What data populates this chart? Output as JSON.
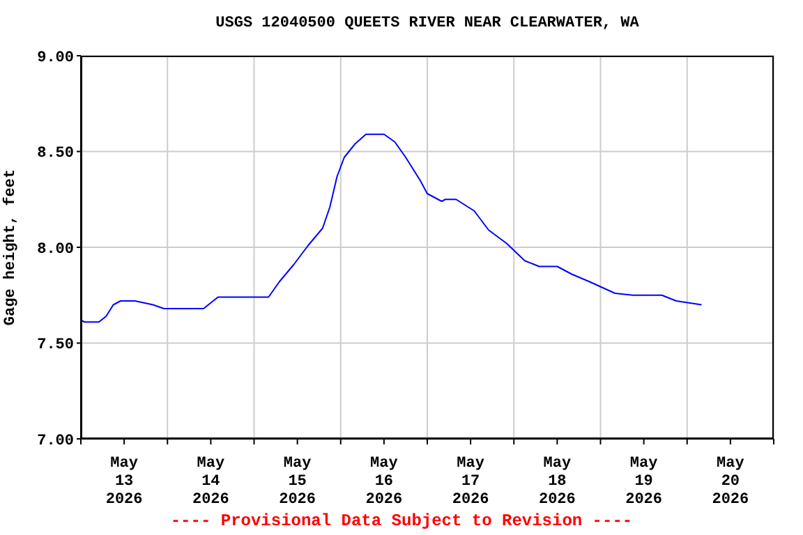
{
  "chart_data": {
    "type": "line",
    "title": "USGS 12040500 QUEETS RIVER NEAR CLEARWATER, WA",
    "ylabel": "Gage height, feet",
    "annotations": [
      "---- Provisional Data Subject to Revision ----"
    ],
    "x": [
      "2026-05-13T00:00",
      "2026-05-13T01:00",
      "2026-05-13T05:00",
      "2026-05-13T07:00",
      "2026-05-13T09:00",
      "2026-05-13T11:00",
      "2026-05-13T15:00",
      "2026-05-13T20:00",
      "2026-05-13T23:00",
      "2026-05-14T10:00",
      "2026-05-14T14:00",
      "2026-05-14T17:00",
      "2026-05-15T01:00",
      "2026-05-15T04:00",
      "2026-05-15T07:00",
      "2026-05-15T11:00",
      "2026-05-15T15:00",
      "2026-05-15T19:00",
      "2026-05-15T21:00",
      "2026-05-15T23:00",
      "2026-05-16T01:00",
      "2026-05-16T04:00",
      "2026-05-16T07:00",
      "2026-05-16T12:00",
      "2026-05-16T15:00",
      "2026-05-16T18:00",
      "2026-05-16T22:00",
      "2026-05-17T00:00",
      "2026-05-17T04:00",
      "2026-05-17T05:00",
      "2026-05-17T08:00",
      "2026-05-17T13:00",
      "2026-05-17T17:00",
      "2026-05-17T22:00",
      "2026-05-18T03:00",
      "2026-05-18T07:00",
      "2026-05-18T12:00",
      "2026-05-18T16:00",
      "2026-05-18T21:00",
      "2026-05-19T04:00",
      "2026-05-19T09:00",
      "2026-05-19T17:00",
      "2026-05-19T21:00",
      "2026-05-20T04:00"
    ],
    "series": [
      {
        "color": "#0000ff",
        "values": [
          7.62,
          7.61,
          7.61,
          7.64,
          7.7,
          7.72,
          7.72,
          7.7,
          7.68,
          7.68,
          7.74,
          7.74,
          7.74,
          7.74,
          7.82,
          7.91,
          8.01,
          8.1,
          8.21,
          8.37,
          8.47,
          8.54,
          8.59,
          8.59,
          8.55,
          8.47,
          8.35,
          8.28,
          8.24,
          8.25,
          8.25,
          8.19,
          8.09,
          8.02,
          7.93,
          7.9,
          7.9,
          7.86,
          7.82,
          7.76,
          7.75,
          7.75,
          7.72,
          7.7
        ]
      }
    ],
    "xlim": [
      "2026-05-13T00:00",
      "2026-05-21T00:00"
    ],
    "xticks": [
      {
        "value": "2026-05-13T00:00",
        "label": null
      },
      {
        "value": "2026-05-13T12:00",
        "label": "May 13 2026"
      },
      {
        "value": "2026-05-14T00:00",
        "label": null
      },
      {
        "value": "2026-05-14T12:00",
        "label": "May 14 2026"
      },
      {
        "value": "2026-05-15T00:00",
        "label": null
      },
      {
        "value": "2026-05-15T12:00",
        "label": "May 15 2026"
      },
      {
        "value": "2026-05-16T00:00",
        "label": null
      },
      {
        "value": "2026-05-16T12:00",
        "label": "May 16 2026"
      },
      {
        "value": "2026-05-17T00:00",
        "label": null
      },
      {
        "value": "2026-05-17T12:00",
        "label": "May 17 2026"
      },
      {
        "value": "2026-05-18T00:00",
        "label": null
      },
      {
        "value": "2026-05-18T12:00",
        "label": "May 18 2026"
      },
      {
        "value": "2026-05-19T00:00",
        "label": null
      },
      {
        "value": "2026-05-19T12:00",
        "label": "May 19 2026"
      },
      {
        "value": "2026-05-20T00:00",
        "label": null
      },
      {
        "value": "2026-05-20T12:00",
        "label": "May 20 2026"
      },
      {
        "value": "2026-05-21T00:00",
        "label": null
      }
    ],
    "ylim": [
      7,
      9
    ],
    "yticks": [
      {
        "value": 7,
        "label": "7.00"
      },
      {
        "value": 7.5,
        "label": "7.50"
      },
      {
        "value": 8,
        "label": "8.00"
      },
      {
        "value": 8.5,
        "label": "8.50"
      },
      {
        "value": 9,
        "label": "9.00"
      }
    ],
    "grid": true,
    "legend": false,
    "marker": "none",
    "line_style": "solid"
  }
}
